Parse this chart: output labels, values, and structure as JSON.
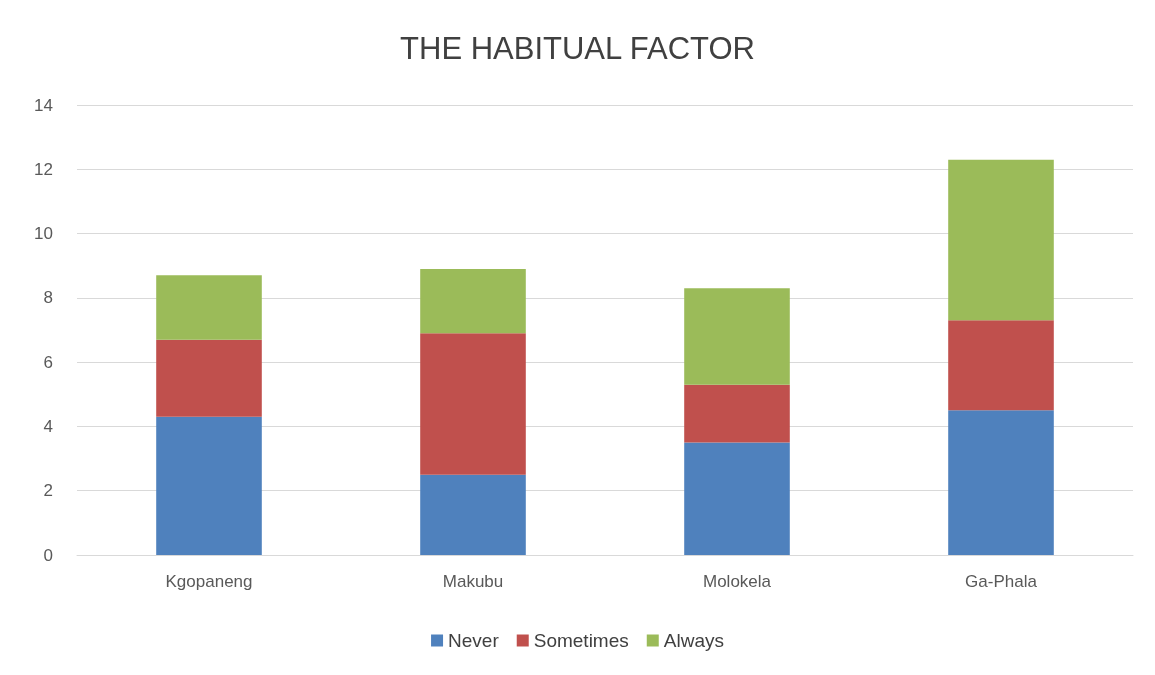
{
  "chart_data": {
    "type": "bar",
    "title": "THE HABITUAL FACTOR",
    "stacked": true,
    "categories": [
      "Kgopaneng",
      "Makubu",
      "Molokela",
      "Ga-Phala"
    ],
    "series": [
      {
        "name": "Never",
        "color": "#4f81bd",
        "values": [
          4.3,
          2.5,
          3.5,
          4.5
        ]
      },
      {
        "name": "Sometimes",
        "color": "#c0504d",
        "values": [
          2.4,
          4.4,
          1.8,
          2.8
        ]
      },
      {
        "name": "Always",
        "color": "#9bbb59",
        "values": [
          2.0,
          2.0,
          3.0,
          5.0
        ]
      }
    ],
    "ylim": [
      0,
      14
    ],
    "yticks": [
      0,
      2,
      4,
      6,
      8,
      10,
      12,
      14
    ],
    "grid": "y",
    "legend": "bottom"
  }
}
